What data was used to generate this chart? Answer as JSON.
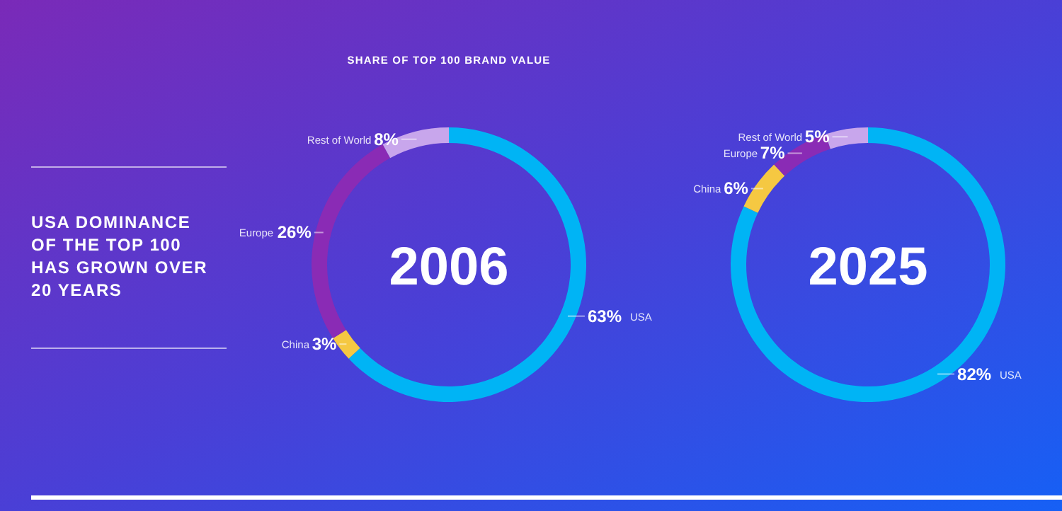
{
  "chart_data": [
    {
      "type": "other",
      "title": "USA DOMINANCE OF THE TOP 100 HAS GROWN OVER 20 YEARS"
    },
    {
      "type": "donut",
      "title": "2006",
      "subtitle": "SHARE OF TOP 100 BRAND VALUE",
      "categories": [
        "USA",
        "China",
        "Europe",
        "Rest of World"
      ],
      "values": [
        63,
        3,
        26,
        8
      ],
      "value_labels": [
        "63%",
        "3%",
        "26%",
        "8%"
      ],
      "colors": [
        "#00b4f5",
        "#f5c842",
        "#8a2bb5",
        "#c8a6ec"
      ]
    },
    {
      "type": "donut",
      "title": "2025",
      "categories": [
        "USA",
        "China",
        "Europe",
        "Rest of World"
      ],
      "values": [
        82,
        6,
        7,
        5
      ],
      "value_labels": [
        "82%",
        "6%",
        "7%",
        "5%"
      ],
      "colors": [
        "#00b4f5",
        "#f5c842",
        "#8a2bb5",
        "#c8a6ec"
      ]
    }
  ]
}
